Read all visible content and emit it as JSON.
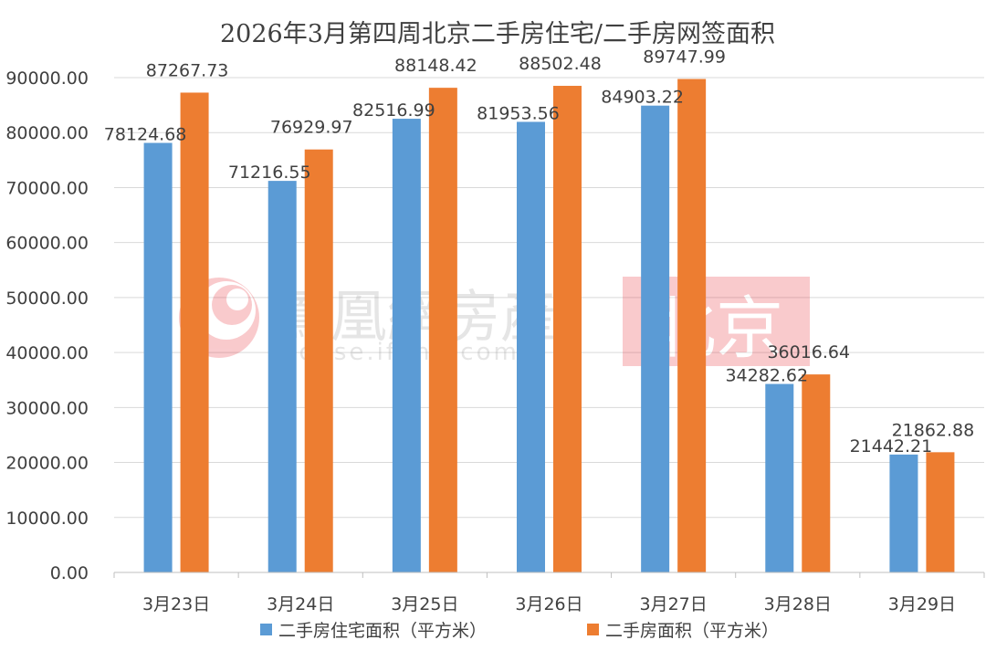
{
  "chart_data": {
    "type": "bar",
    "title": "2026年3月第四周北京二手房住宅/二手房网签面积",
    "categories": [
      "3月23日",
      "3月24日",
      "3月25日",
      "3月26日",
      "3月27日",
      "3月28日",
      "3月29日"
    ],
    "series": [
      {
        "name": "二手房住宅面积（平方米）",
        "color": "#5b9bd5",
        "values": [
          78124.68,
          71216.55,
          82516.99,
          81953.56,
          84903.22,
          34282.62,
          21442.21
        ],
        "labels": [
          "78124.68",
          "71216.55",
          "82516.99",
          "81953.56",
          "84903.22",
          "34282.62",
          "21442.21"
        ]
      },
      {
        "name": "二手房面积（平方米）",
        "color": "#ed7d31",
        "values": [
          87267.73,
          76929.97,
          88148.42,
          88502.48,
          89747.99,
          36016.64,
          21862.88
        ],
        "labels": [
          "87267.73",
          "76929.97",
          "88148.42",
          "88502.48",
          "89747.99",
          "36016.64",
          "21862.88"
        ]
      }
    ],
    "yticks": [
      "0.00",
      "10000.00",
      "20000.00",
      "30000.00",
      "40000.00",
      "50000.00",
      "60000.00",
      "70000.00",
      "80000.00",
      "90000.00"
    ],
    "ylim": [
      0,
      90000
    ],
    "grid": true,
    "legend_position": "bottom",
    "xlabel": "",
    "ylabel": ""
  },
  "watermark": {
    "brand": "鳳凰網房產",
    "url": "house.ifeng.com",
    "city": "北京",
    "logo_icon": "ifeng-phoenix-logo"
  }
}
